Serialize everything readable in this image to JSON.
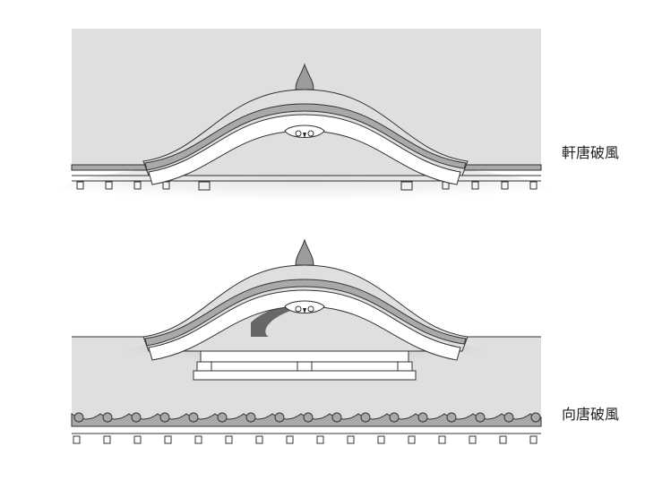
{
  "diagrams": [
    {
      "label": "軒唐破風"
    },
    {
      "label": "向唐破風"
    }
  ],
  "colors": {
    "roof": "#e0dfe0",
    "band": "#a9a9a9",
    "line": "#333333",
    "white": "#ffffff",
    "finial": "#9c9c9c"
  }
}
